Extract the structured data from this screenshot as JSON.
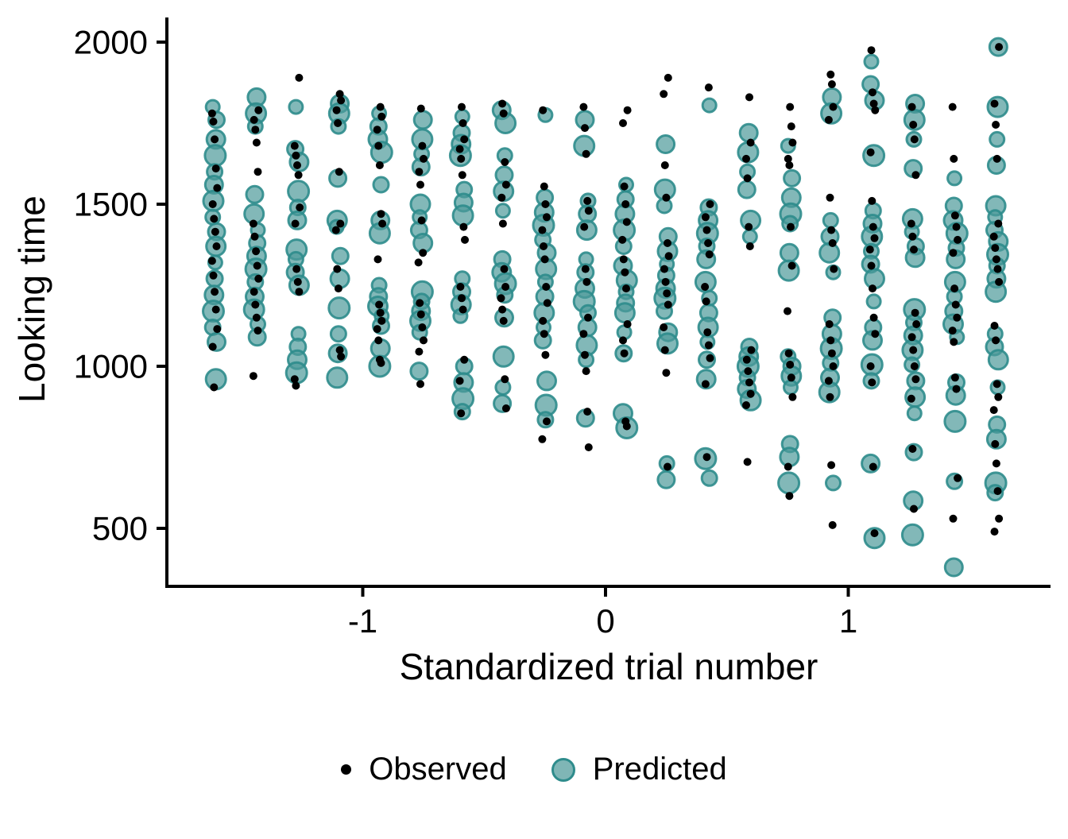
{
  "figure": {
    "title": "",
    "y_axis": {
      "title": "Looking time",
      "ticks": [
        "2000",
        "1500",
        "1000",
        "500"
      ],
      "tick_values": [
        2000,
        1500,
        1000,
        500
      ]
    },
    "x_axis": {
      "title": "Standardized trial number",
      "ticks": [
        "-1",
        "0",
        "1"
      ],
      "tick_values": [
        -1,
        0,
        1
      ]
    },
    "legend": {
      "observed_label": "Observed",
      "predicted_label": "Predicted"
    },
    "colors": {
      "observed": "#000000",
      "predicted_fill": "#4d9a9a",
      "predicted_stroke": "#2e8c8c",
      "axis": "#000000"
    }
  },
  "chart_data": {
    "type": "scatter",
    "title": "",
    "xlabel": "Standardized trial number",
    "ylabel": "Looking time",
    "xlim": [
      -1.81,
      1.83
    ],
    "ylim": [
      320,
      2075
    ],
    "grid": false,
    "legend_position": "bottom",
    "series_meta": [
      {
        "name": "Observed",
        "marker": "small black dot"
      },
      {
        "name": "Predicted",
        "marker": "large teal circle"
      }
    ],
    "columns": [
      {
        "x": -1.61,
        "observed": [
          1780,
          1755,
          1700,
          1610,
          1550,
          1500,
          1455,
          1415,
          1370,
          1325,
          1280,
          1230,
          1175,
          1115,
          1060,
          935
        ],
        "predicted": [
          1800,
          1760,
          1700,
          1650,
          1600,
          1560,
          1510,
          1460,
          1415,
          1370,
          1320,
          1270,
          1220,
          1170,
          1120,
          1075,
          960
        ]
      },
      {
        "x": -1.44,
        "observed": [
          1790,
          1760,
          1730,
          1690,
          1600,
          1440,
          1400,
          1355,
          1310,
          1270,
          1230,
          1190,
          1150,
          1110,
          970
        ],
        "predicted": [
          1830,
          1780,
          1740,
          1530,
          1470,
          1420,
          1380,
          1340,
          1300,
          1260,
          1215,
          1175,
          1130,
          1090
        ]
      },
      {
        "x": -1.27,
        "observed": [
          1890,
          1680,
          1650,
          1620,
          1590,
          1490,
          1440,
          1300,
          1260,
          1230,
          960,
          940
        ],
        "predicted": [
          1800,
          1670,
          1630,
          1540,
          1490,
          1450,
          1360,
          1330,
          1290,
          1250,
          1100,
          1060,
          1020,
          980
        ]
      },
      {
        "x": -1.1,
        "observed": [
          1840,
          1820,
          1790,
          1750,
          1600,
          1440,
          1420,
          1300,
          1240,
          1050,
          1030
        ],
        "predicted": [
          1810,
          1780,
          1740,
          1580,
          1450,
          1430,
          1340,
          1270,
          1180,
          1100,
          1040,
          965
        ]
      },
      {
        "x": -0.93,
        "observed": [
          1800,
          1770,
          1730,
          1680,
          1620,
          1470,
          1440,
          1330,
          1190,
          1165,
          1140,
          1115,
          1080,
          1020,
          1010
        ],
        "predicted": [
          1780,
          1740,
          1700,
          1660,
          1560,
          1450,
          1410,
          1250,
          1215,
          1185,
          1155,
          1125,
          1055,
          1000
        ]
      },
      {
        "x": -0.76,
        "observed": [
          1795,
          1680,
          1640,
          1600,
          1560,
          1450,
          1350,
          1320,
          1195,
          1160,
          1120,
          1080,
          1045,
          945
        ],
        "predicted": [
          1760,
          1700,
          1655,
          1615,
          1500,
          1460,
          1420,
          1380,
          1230,
          1200,
          1170,
          1140,
          1105,
          985
        ]
      },
      {
        "x": -0.59,
        "observed": [
          1800,
          1750,
          1700,
          1670,
          1640,
          1590,
          1430,
          1390,
          1245,
          1210,
          1175,
          1020,
          955,
          855
        ],
        "predicted": [
          1770,
          1720,
          1685,
          1650,
          1545,
          1505,
          1465,
          1270,
          1230,
          1190,
          1155,
          1000,
          950,
          900,
          860
        ]
      },
      {
        "x": -0.42,
        "observed": [
          1810,
          1780,
          1630,
          1560,
          1520,
          1440,
          1300,
          1245,
          1210,
          1175,
          1140,
          960,
          870
        ],
        "predicted": [
          1790,
          1750,
          1650,
          1590,
          1540,
          1480,
          1330,
          1290,
          1255,
          1220,
          1150,
          1030,
          935,
          885
        ]
      },
      {
        "x": -0.25,
        "observed": [
          1790,
          1555,
          1500,
          1460,
          1420,
          1370,
          1330,
          1245,
          1195,
          1140,
          1100,
          1035,
          830,
          775
        ],
        "predicted": [
          1775,
          1520,
          1475,
          1435,
          1390,
          1350,
          1300,
          1260,
          1215,
          1165,
          1120,
          1080,
          955,
          880,
          835
        ]
      },
      {
        "x": -0.08,
        "observed": [
          1800,
          1735,
          1655,
          1510,
          1480,
          1430,
          1300,
          1260,
          1150,
          1100,
          1035,
          985,
          860,
          750
        ],
        "predicted": [
          1760,
          1680,
          1510,
          1470,
          1420,
          1330,
          1290,
          1240,
          1200,
          1165,
          1120,
          1065,
          1020,
          840
        ]
      },
      {
        "x": 0.08,
        "observed": [
          1790,
          1750,
          1555,
          1500,
          1445,
          1390,
          1330,
          1290,
          1240,
          1130,
          1080,
          1040,
          830,
          815
        ],
        "predicted": [
          1560,
          1515,
          1470,
          1420,
          1370,
          1310,
          1265,
          1230,
          1195,
          1165,
          1105,
          1040,
          855,
          810
        ]
      },
      {
        "x": 0.25,
        "observed": [
          1890,
          1840,
          1620,
          1520,
          1380,
          1340,
          1300,
          1260,
          1225,
          1190,
          1120,
          1050,
          980,
          690
        ],
        "predicted": [
          1685,
          1545,
          1495,
          1400,
          1355,
          1315,
          1280,
          1240,
          1210,
          1170,
          1105,
          1070,
          700,
          650
        ]
      },
      {
        "x": 0.42,
        "observed": [
          1860,
          1500,
          1460,
          1420,
          1380,
          1345,
          1245,
          1200,
          1105,
          1065,
          1025,
          945,
          720
        ],
        "predicted": [
          1805,
          1490,
          1450,
          1410,
          1370,
          1330,
          1260,
          1210,
          1165,
          1120,
          1075,
          1020,
          960,
          715,
          655
        ]
      },
      {
        "x": 0.59,
        "observed": [
          1830,
          1690,
          1640,
          1580,
          1430,
          1370,
          1050,
          1020,
          985,
          950,
          915,
          880,
          705
        ],
        "predicted": [
          1720,
          1660,
          1600,
          1545,
          1450,
          1400,
          1060,
          1030,
          1000,
          965,
          930,
          895
        ]
      },
      {
        "x": 0.76,
        "observed": [
          1800,
          1740,
          1690,
          1640,
          1620,
          1430,
          1310,
          1170,
          1040,
          1005,
          965,
          905,
          690,
          600
        ],
        "predicted": [
          1680,
          1580,
          1520,
          1470,
          1440,
          1350,
          1295,
          1030,
          1000,
          970,
          935,
          760,
          720,
          640
        ]
      },
      {
        "x": 0.93,
        "observed": [
          1900,
          1870,
          1800,
          1760,
          1520,
          1420,
          1380,
          1300,
          1130,
          1080,
          1040,
          1000,
          955,
          905,
          695,
          510
        ],
        "predicted": [
          1830,
          1780,
          1450,
          1400,
          1350,
          1290,
          1150,
          1100,
          1055,
          1010,
          965,
          920,
          640
        ]
      },
      {
        "x": 1.1,
        "observed": [
          1975,
          1845,
          1810,
          1790,
          1660,
          1510,
          1430,
          1395,
          1360,
          1310,
          1240,
          1150,
          1100,
          1000,
          950,
          690,
          485
        ],
        "predicted": [
          1940,
          1870,
          1820,
          1650,
          1480,
          1440,
          1400,
          1355,
          1315,
          1270,
          1200,
          1120,
          1080,
          1005,
          955,
          700,
          470
        ]
      },
      {
        "x": 1.27,
        "observed": [
          1800,
          1745,
          1700,
          1590,
          1440,
          1400,
          1360,
          1165,
          1130,
          1090,
          1050,
          1000,
          960,
          900,
          745,
          560
        ],
        "predicted": [
          1810,
          1760,
          1700,
          1610,
          1455,
          1415,
          1370,
          1335,
          1175,
          1135,
          1095,
          1050,
          1005,
          955,
          905,
          855,
          735,
          585,
          480
        ]
      },
      {
        "x": 1.44,
        "observed": [
          1800,
          1640,
          1465,
          1430,
          1390,
          1350,
          1240,
          1190,
          1150,
          1110,
          1075,
          965,
          930,
          655,
          530
        ],
        "predicted": [
          1580,
          1495,
          1450,
          1410,
          1365,
          1330,
          1260,
          1215,
          1170,
          1130,
          1090,
          950,
          910,
          830,
          645,
          380
        ]
      },
      {
        "x": 1.61,
        "observed": [
          1985,
          1810,
          1745,
          1640,
          1440,
          1400,
          1365,
          1330,
          1300,
          1260,
          1125,
          1080,
          945,
          905,
          865,
          760,
          700,
          615,
          530,
          490
        ],
        "predicted": [
          1985,
          1800,
          1700,
          1620,
          1495,
          1460,
          1420,
          1385,
          1345,
          1310,
          1270,
          1230,
          1100,
          1060,
          1020,
          935,
          820,
          775,
          640,
          610
        ]
      }
    ]
  }
}
